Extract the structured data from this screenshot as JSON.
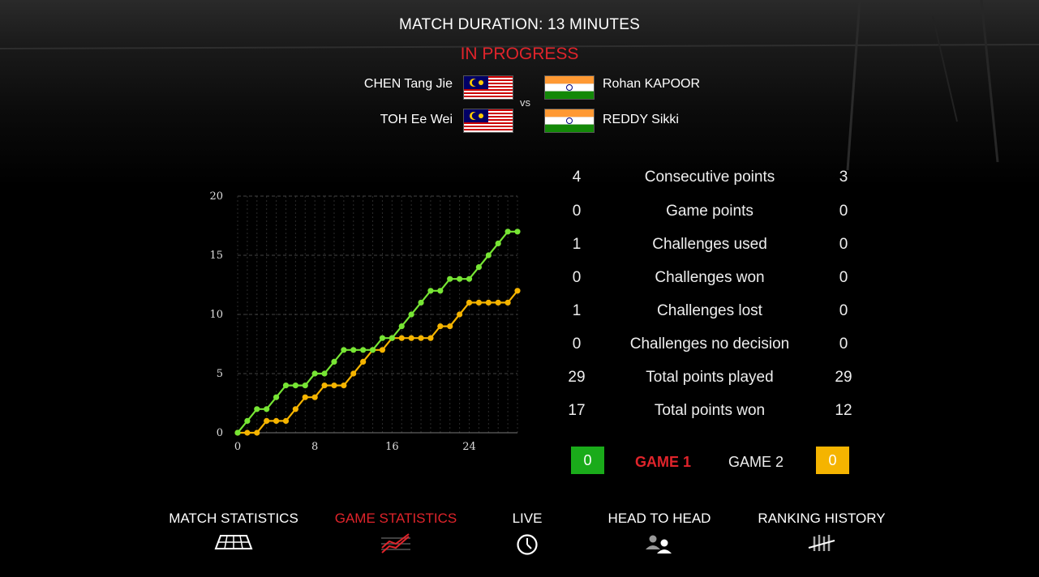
{
  "match": {
    "duration": "MATCH DURATION: 13 MINUTES",
    "status": "IN PROGRESS",
    "vs": "vs"
  },
  "team_left": {
    "players": [
      {
        "name": "CHEN Tang Jie",
        "flag": "malaysia-flag"
      },
      {
        "name": "TOH Ee Wei",
        "flag": "malaysia-flag"
      }
    ],
    "color": "#77e534"
  },
  "team_right": {
    "players": [
      {
        "name": "Rohan KAPOOR",
        "flag": "india-flag"
      },
      {
        "name": "REDDY Sikki",
        "flag": "india-flag"
      }
    ],
    "color": "#f5b400"
  },
  "colors": {
    "accent_red": "#e0242b",
    "green": "#77e534",
    "orange": "#f5b400",
    "green_box": "#1aab1a",
    "orange_box": "#f5b400"
  },
  "stats": [
    {
      "left": "4",
      "label": "Consecutive points",
      "right": "3"
    },
    {
      "left": "0",
      "label": "Game points",
      "right": "0"
    },
    {
      "left": "1",
      "label": "Challenges used",
      "right": "0"
    },
    {
      "left": "0",
      "label": "Challenges won",
      "right": "0"
    },
    {
      "left": "1",
      "label": "Challenges lost",
      "right": "0"
    },
    {
      "left": "0",
      "label": "Challenges no decision",
      "right": "0"
    },
    {
      "left": "29",
      "label": "Total points played",
      "right": "29"
    },
    {
      "left": "17",
      "label": "Total points won",
      "right": "12"
    }
  ],
  "game_selector": {
    "left_score": "0",
    "right_score": "0",
    "tabs": [
      "GAME 1",
      "GAME 2"
    ],
    "active": "GAME 1"
  },
  "nav": [
    {
      "label": "MATCH STATISTICS",
      "icon": "court-icon",
      "active": false
    },
    {
      "label": "GAME STATISTICS",
      "icon": "trend-lines-icon",
      "active": true
    },
    {
      "label": "LIVE",
      "icon": "clock-icon",
      "active": false
    },
    {
      "label": "HEAD TO HEAD",
      "icon": "two-users-icon",
      "active": false
    },
    {
      "label": "RANKING HISTORY",
      "icon": "ranking-bars-icon",
      "active": false
    }
  ],
  "chart_data": {
    "type": "line",
    "x": [
      0,
      1,
      2,
      3,
      4,
      5,
      6,
      7,
      8,
      9,
      10,
      11,
      12,
      13,
      14,
      15,
      16,
      17,
      18,
      19,
      20,
      21,
      22,
      23,
      24,
      25,
      26,
      27,
      28,
      29
    ],
    "series": [
      {
        "values": [
          0,
          1,
          2,
          2,
          3,
          4,
          4,
          4,
          5,
          5,
          6,
          7,
          7,
          7,
          7,
          8,
          8,
          9,
          10,
          11,
          12,
          12,
          13,
          13,
          13,
          14,
          15,
          16,
          17,
          17
        ]
      },
      {
        "values": [
          0,
          0,
          0,
          1,
          1,
          1,
          2,
          3,
          3,
          4,
          4,
          4,
          5,
          6,
          7,
          7,
          8,
          8,
          8,
          8,
          8,
          9,
          9,
          10,
          11,
          11,
          11,
          11,
          11,
          12
        ]
      }
    ],
    "xticks": [
      "0",
      "8",
      "16",
      "24"
    ],
    "yticks": [
      "0",
      "5",
      "10",
      "15",
      "20"
    ],
    "xlim": [
      0,
      29
    ],
    "ylim": [
      0,
      20
    ],
    "grid": true
  }
}
